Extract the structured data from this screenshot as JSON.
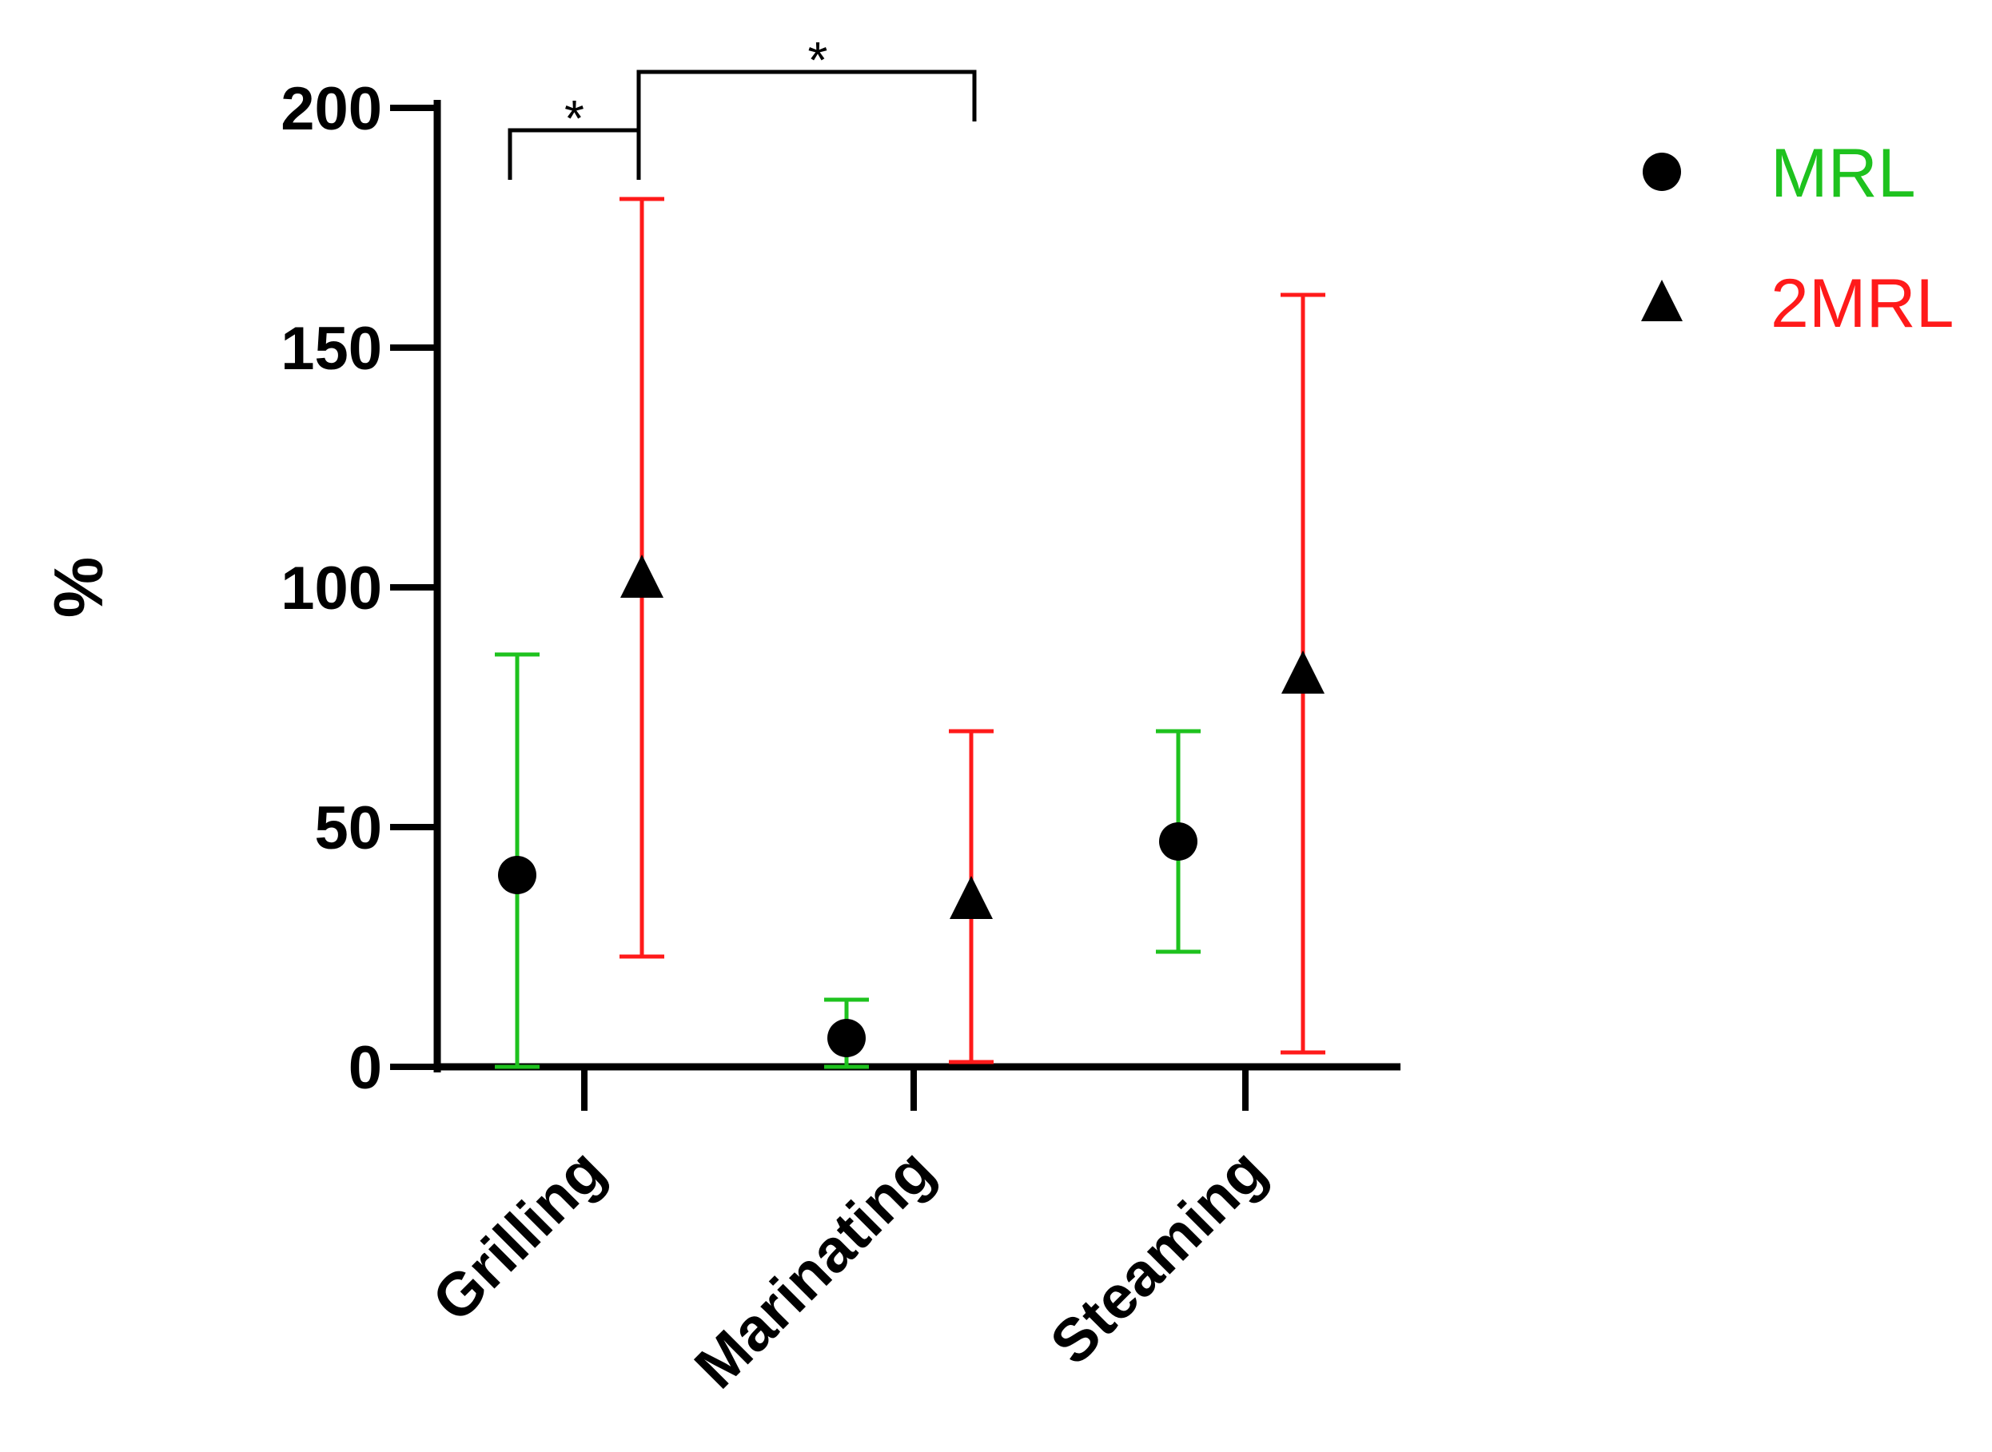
{
  "chart_data": {
    "type": "scatter",
    "title": "",
    "xlabel": "",
    "ylabel": "%",
    "ylim": [
      0,
      200
    ],
    "yticks": [
      0,
      50,
      100,
      150,
      200
    ],
    "categories": [
      "Grilling",
      "Marinating",
      "Steaming"
    ],
    "series": [
      {
        "name": "MRL",
        "marker": "circle",
        "marker_color": "#000000",
        "errorbar_color": "#1ec21e",
        "values": [
          40,
          6,
          47
        ],
        "err_low": [
          0,
          0,
          24
        ],
        "err_high": [
          86,
          14,
          70
        ]
      },
      {
        "name": "2MRL",
        "marker": "triangle",
        "marker_color": "#000000",
        "errorbar_color": "#ff1a1a",
        "values": [
          102,
          35,
          82
        ],
        "err_low": [
          23,
          1,
          3
        ],
        "err_high": [
          181,
          70,
          161
        ]
      }
    ],
    "significance": [
      {
        "from": "Grilling MRL",
        "to": "Grilling 2MRL",
        "label": "*"
      },
      {
        "from": "Grilling 2MRL",
        "to": "Marinating 2MRL",
        "label": "*"
      }
    ],
    "legend_position": "top-right",
    "grid": false
  }
}
